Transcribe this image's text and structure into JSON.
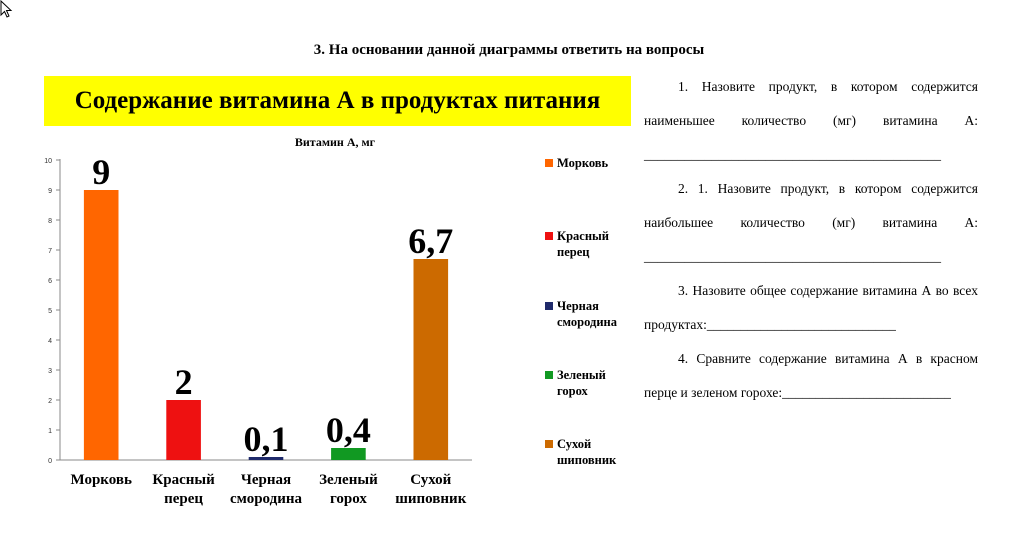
{
  "heading": "3.  На основании данной диаграммы ответить на вопросы",
  "banner_title": "Содержание витамина А в продуктах питания",
  "chart_data": {
    "type": "bar",
    "title": "Витамин А, мг",
    "categories": [
      "Морковь",
      "Красный перец",
      "Черная смородина",
      "Зеленый горох",
      "Сухой шиповник"
    ],
    "category_lines": [
      [
        "Морковь"
      ],
      [
        "Красный",
        "перец"
      ],
      [
        "Черная",
        "смородина"
      ],
      [
        "Зеленый",
        "горох"
      ],
      [
        "Сухой",
        "шиповник"
      ]
    ],
    "values": [
      9,
      2,
      0.1,
      0.4,
      6.7
    ],
    "data_labels": [
      "9",
      "2",
      "0,1",
      "0,4",
      "6,7"
    ],
    "colors": [
      "#ff6600",
      "#ee1111",
      "#1f2a6b",
      "#119922",
      "#cc6a00"
    ],
    "ylim": [
      0,
      10
    ],
    "yticks": [
      "0",
      "1",
      "2",
      "3",
      "4",
      "5",
      "6",
      "7",
      "8",
      "9",
      "10"
    ],
    "grid": false,
    "legend": "right",
    "legend_lines": [
      [
        "Морковь"
      ],
      [
        "Красный",
        "перец"
      ],
      [
        "Черная",
        "смородина"
      ],
      [
        "Зеленый",
        "горох"
      ],
      [
        "Сухой",
        "шиповник"
      ]
    ]
  },
  "questions": [
    "1. Назовите продукт, в котором содержится наименьшее количество (мг) витамина А: ____________________________________________",
    "2. 1. Назовите продукт, в котором содержится наибольшее количество (мг) витамина А: ____________________________________________",
    "3. Назовите общее содержание витамина А во всех продуктах:____________________________",
    "4. Сравните содержание витамина А в красном перце и зеленом горохе:_________________________"
  ]
}
